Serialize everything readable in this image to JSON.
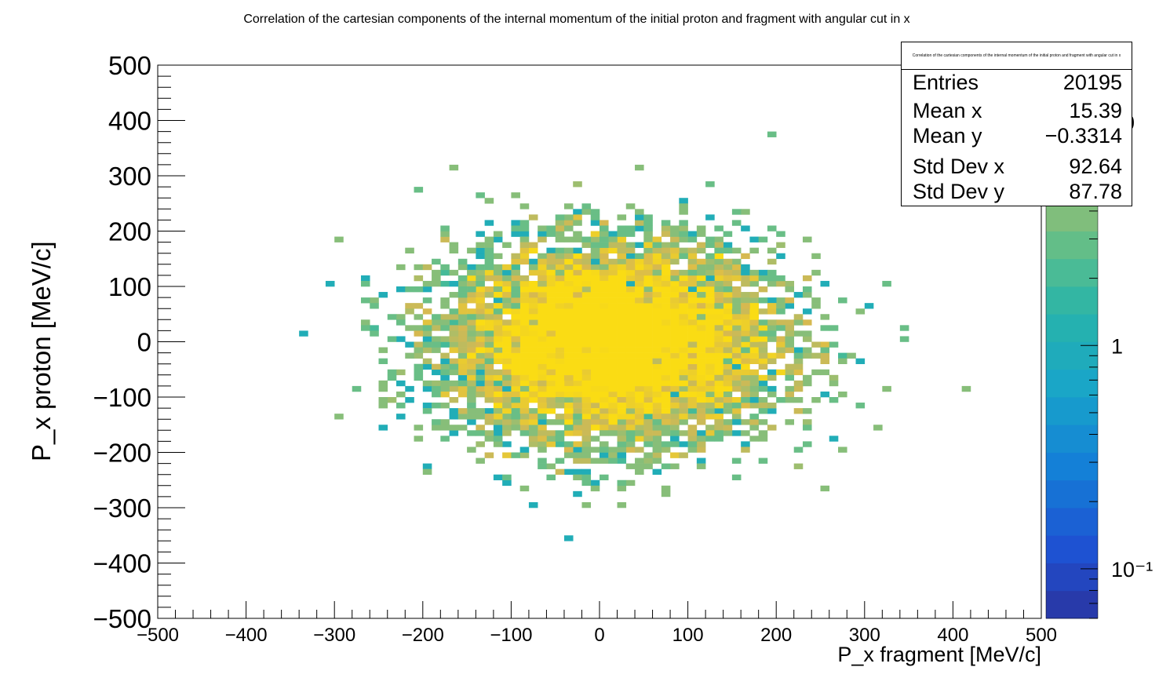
{
  "chart_data": {
    "type": "heatmap",
    "title": "Correlation of the cartesian components of the internal momentum of the initial proton and fragment with angular cut in x",
    "xlabel": "P_x fragment [MeV/c]",
    "ylabel": "P_x proton [MeV/c]",
    "xlim": [
      -500,
      500
    ],
    "ylim": [
      -500,
      500
    ],
    "x_ticks": [
      "−500",
      "−400",
      "−300",
      "−200",
      "−100",
      "0",
      "100",
      "200",
      "300",
      "400",
      "500"
    ],
    "y_ticks": [
      "500",
      "400",
      "300",
      "200",
      "100",
      "0",
      "−100",
      "−200",
      "−300",
      "−400",
      "−500"
    ],
    "color_scale": "log",
    "z_ticks": [
      "10",
      "1",
      "10⁻¹"
    ],
    "bins": 100,
    "distribution": {
      "center": [
        15.39,
        -0.3314
      ],
      "sigma": [
        92.64,
        87.78
      ]
    },
    "stats": {
      "title": "Correlation of the cartesian components of the internal momentum of the initial proton and fragment with angular cut in x",
      "rows": [
        {
          "label": "Entries",
          "value": "20195"
        },
        {
          "label": "Mean x",
          "value": "15.39"
        },
        {
          "label": "Mean y",
          "value": "−0.3314"
        },
        {
          "label": "Std Dev x",
          "value": "92.64"
        },
        {
          "label": "Std Dev y",
          "value": "87.78"
        }
      ]
    },
    "colors": {
      "low": "#1f9fc8",
      "mid": "#2bb3a8",
      "high": "#f5d320"
    }
  }
}
